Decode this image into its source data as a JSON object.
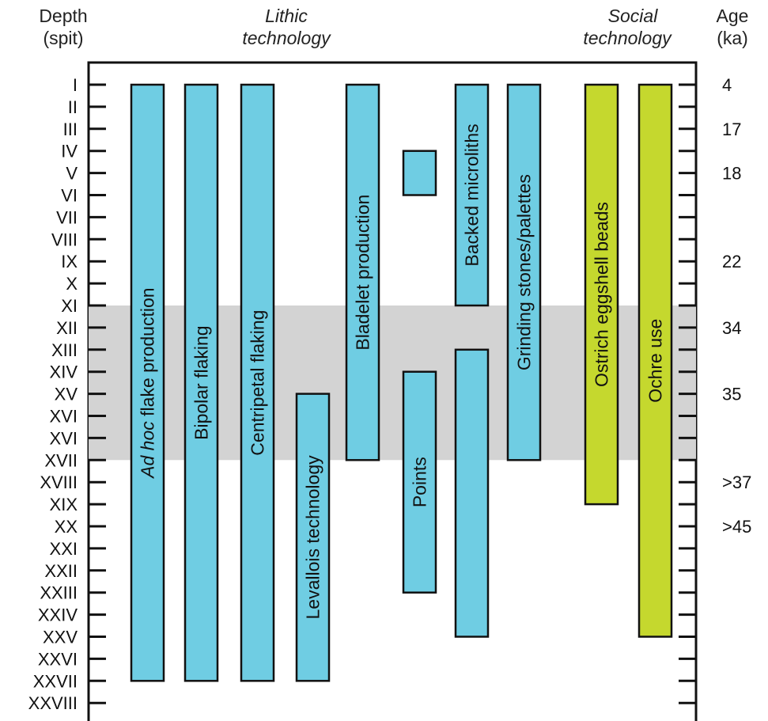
{
  "headers": {
    "depth_line1": "Depth",
    "depth_line2": "(spit)",
    "lithic_line1": "Lithic",
    "lithic_line2": "technology",
    "social_line1": "Social",
    "social_line2": "technology",
    "age_line1": "Age",
    "age_line2": "(ka)"
  },
  "colors": {
    "lithic": "#6fcde3",
    "social": "#c5d82e",
    "shade": "#d3d3d3",
    "stroke": "#111111"
  },
  "chart_data": {
    "type": "range-bar",
    "spits": [
      "I",
      "II",
      "III",
      "IV",
      "V",
      "VI",
      "VII",
      "VIII",
      "IX",
      "X",
      "XI",
      "XII",
      "XIII",
      "XIV",
      "XV",
      "XVI",
      "XVI",
      "XVII",
      "XVIII",
      "XIX",
      "XX",
      "XXI",
      "XXII",
      "XXIII",
      "XXIV",
      "XXV",
      "XXVI",
      "XXVII",
      "XXVIII"
    ],
    "ages": [
      {
        "spit": 1,
        "label": "4"
      },
      {
        "spit": 3,
        "label": "17"
      },
      {
        "spit": 5,
        "label": "18"
      },
      {
        "spit": 9,
        "label": "22"
      },
      {
        "spit": 12,
        "label": "34"
      },
      {
        "spit": 15,
        "label": "35"
      },
      {
        "spit": 19,
        "label": ">37"
      },
      {
        "spit": 21,
        "label": ">45"
      }
    ],
    "shaded_band": {
      "from_spit": 11,
      "to_spit": 18
    },
    "bars": [
      {
        "label_italic": "Ad hoc",
        "label": " flake production",
        "group": "lithic",
        "from_spit": 1,
        "to_spit": 28
      },
      {
        "label_italic": "",
        "label": "Bipolar flaking",
        "group": "lithic",
        "from_spit": 1,
        "to_spit": 28
      },
      {
        "label_italic": "",
        "label": "Centripetal flaking",
        "group": "lithic",
        "from_spit": 1,
        "to_spit": 28
      },
      {
        "label_italic": "",
        "label": "Levallois technology",
        "group": "lithic",
        "from_spit": 15,
        "to_spit": 28
      },
      {
        "label_italic": "",
        "label": "Bladelet production",
        "group": "lithic",
        "from_spit": 1,
        "to_spit": 18
      },
      {
        "label_italic": "",
        "label": "",
        "group": "lithic",
        "from_spit": 4,
        "to_spit": 6
      },
      {
        "label_italic": "",
        "label": "Points",
        "group": "lithic",
        "from_spit": 14,
        "to_spit": 24
      },
      {
        "label_italic": "",
        "label": "Backed microliths",
        "group": "lithic",
        "from_spit": 1,
        "to_spit": 11
      },
      {
        "label_italic": "",
        "label": "",
        "group": "lithic",
        "from_spit": 13,
        "to_spit": 26
      },
      {
        "label_italic": "",
        "label": "Grinding stones/palettes",
        "group": "lithic",
        "from_spit": 1,
        "to_spit": 18
      },
      {
        "label_italic": "",
        "label": "Ostrich eggshell beads",
        "group": "social",
        "from_spit": 1,
        "to_spit": 20
      },
      {
        "label_italic": "",
        "label": "Ochre use",
        "group": "social",
        "from_spit": 1,
        "to_spit": 26
      }
    ]
  }
}
